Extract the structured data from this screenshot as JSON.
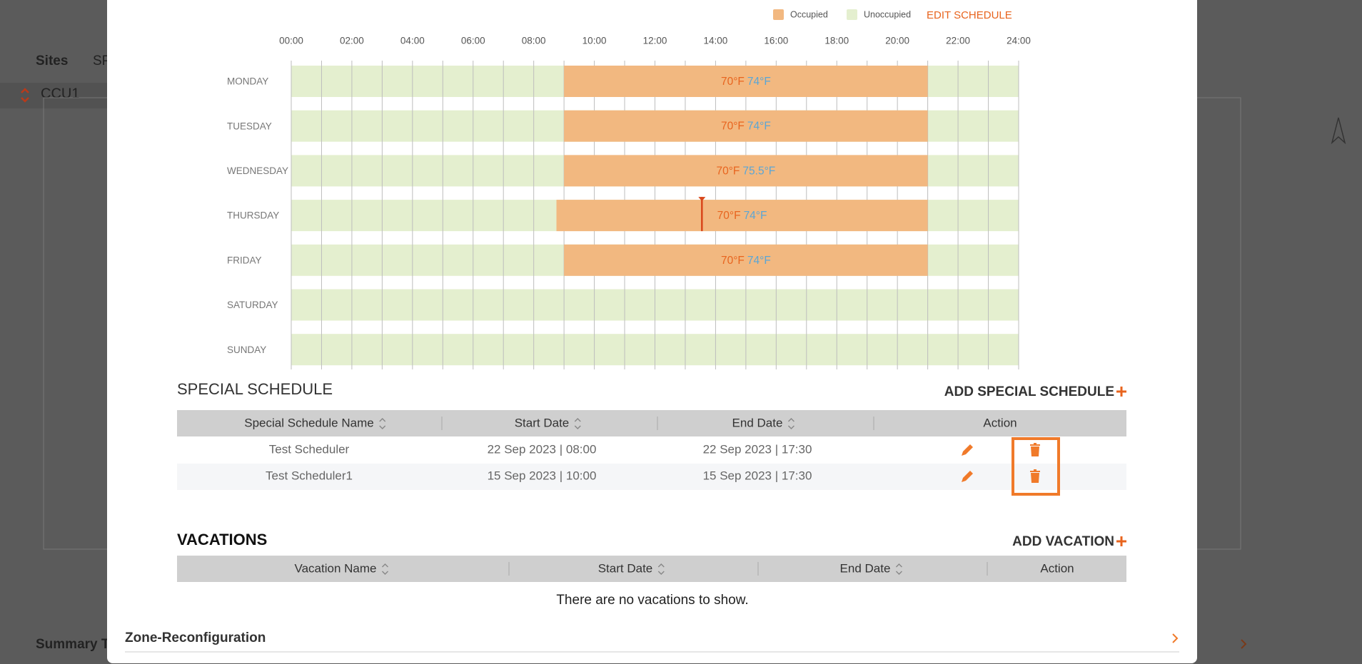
{
  "background": {
    "nav": [
      "Sites",
      "SP"
    ],
    "ccu": "CCU1",
    "summary": "Summary T"
  },
  "schedule": {
    "legend": [
      {
        "label": "Occupied",
        "color": "#f2b880"
      },
      {
        "label": "Unoccupied",
        "color": "#e4efcf"
      }
    ],
    "edit_button": "EDIT SCHEDULE",
    "xlim": [
      0,
      24
    ],
    "xticks": [
      {
        "value": 0,
        "label": "00:00"
      },
      {
        "value": 2,
        "label": "02:00"
      },
      {
        "value": 4,
        "label": "04:00"
      },
      {
        "value": 6,
        "label": "06:00"
      },
      {
        "value": 8,
        "label": "08:00"
      },
      {
        "value": 10,
        "label": "10:00"
      },
      {
        "value": 12,
        "label": "12:00"
      },
      {
        "value": 14,
        "label": "14:00"
      },
      {
        "value": 16,
        "label": "16:00"
      },
      {
        "value": 18,
        "label": "18:00"
      },
      {
        "value": 20,
        "label": "20:00"
      },
      {
        "value": 22,
        "label": "22:00"
      },
      {
        "value": 24,
        "label": "24:00"
      }
    ],
    "days": [
      {
        "name": "MONDAY",
        "occupied": [
          9,
          21
        ],
        "heating": "70°F",
        "cooling": "74°F"
      },
      {
        "name": "TUESDAY",
        "occupied": [
          9,
          21
        ],
        "heating": "70°F",
        "cooling": "74°F"
      },
      {
        "name": "WEDNESDAY",
        "occupied": [
          9,
          21
        ],
        "heating": "70°F",
        "cooling": "75.5°F"
      },
      {
        "name": "THURSDAY",
        "occupied": [
          8.75,
          21
        ],
        "heating": "70°F",
        "cooling": "74°F",
        "marker": 13.55
      },
      {
        "name": "FRIDAY",
        "occupied": [
          9,
          21
        ],
        "heating": "70°F",
        "cooling": "74°F"
      },
      {
        "name": "SATURDAY",
        "occupied": null
      },
      {
        "name": "SUNDAY",
        "occupied": null
      }
    ]
  },
  "special_schedule": {
    "title": "SPECIAL SCHEDULE",
    "add_button": "ADD SPECIAL SCHEDULE",
    "columns": [
      "Special Schedule Name",
      "Start Date",
      "End Date",
      "Action"
    ],
    "rows": [
      [
        "Test Scheduler",
        "22 Sep 2023 | 08:00",
        "22 Sep 2023 | 17:30"
      ],
      [
        "Test Scheduler1",
        "15 Sep 2023 | 10:00",
        "15 Sep 2023 | 17:30"
      ]
    ]
  },
  "vacations": {
    "title": "VACATIONS",
    "add_button": "ADD VACATION",
    "columns": [
      "Vacation Name",
      "Start Date",
      "End Date",
      "Action"
    ],
    "empty_message": "There are no vacations to show."
  },
  "footer": {
    "section": "Zone-Reconfiguration"
  }
}
